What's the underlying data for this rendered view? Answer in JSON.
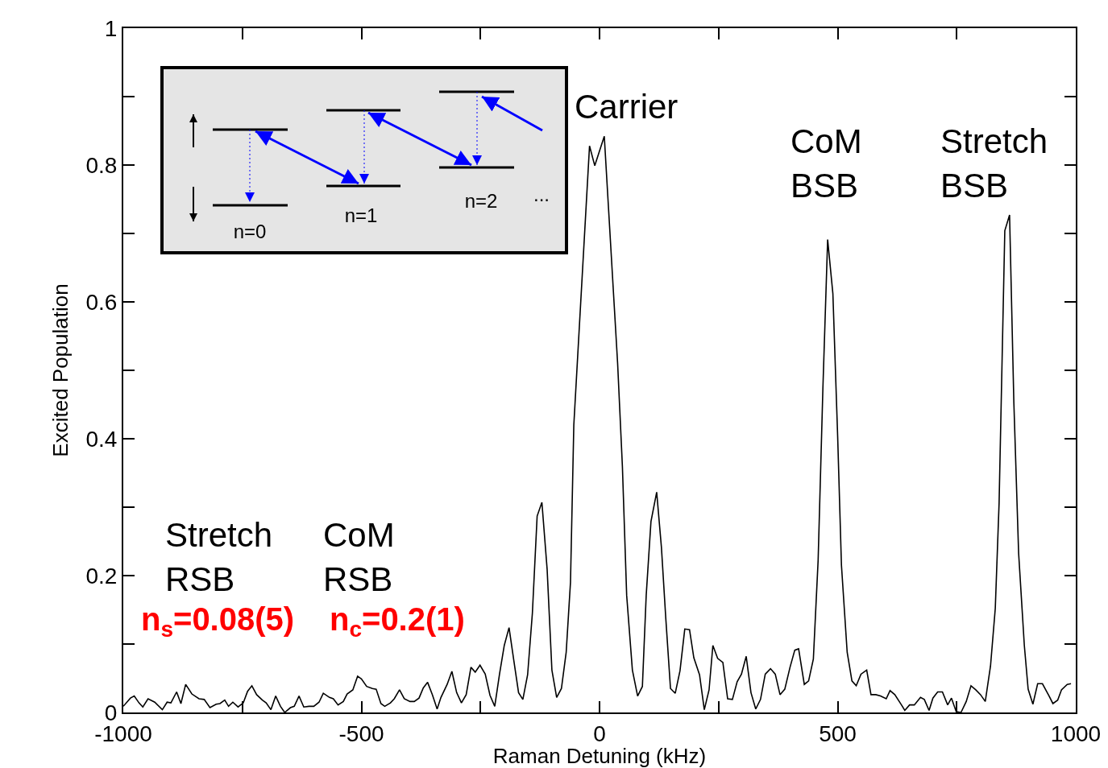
{
  "chart_data": {
    "type": "line",
    "xlabel": "Raman Detuning (kHz)",
    "ylabel": "Excited Population",
    "annotations": [
      "Carrier",
      "CoM\nBSB",
      "Stretch\nBSB",
      "Stretch\nRSB",
      "CoM\nRSB",
      "n$_{s}$=0.08(5)",
      "n$_{c}$=0.2(1)",
      "n=0",
      "n=1",
      "n=2",
      "..."
    ],
    "xlim": [
      -1000,
      1000
    ],
    "ylim": [
      0,
      1
    ],
    "xticks": [
      -1000,
      {
        "value": -750,
        "label": null
      },
      -500,
      {
        "value": -250,
        "label": null
      },
      0,
      {
        "value": 250,
        "label": null
      },
      500,
      {
        "value": 750,
        "label": null
      },
      1000
    ],
    "yticks": [
      0,
      {
        "value": 0.1,
        "label": null
      },
      0.2,
      {
        "value": 0.3,
        "label": null
      },
      0.4,
      {
        "value": 0.5,
        "label": null
      },
      0.6,
      {
        "value": 0.7,
        "label": null
      },
      0.8,
      {
        "value": 0.9,
        "label": null
      },
      1
    ],
    "x": [
      -1000,
      -985,
      -977,
      -967,
      -959,
      -948,
      -934,
      -918,
      -908,
      -900,
      -888,
      -879,
      -869,
      -856,
      -841,
      -830,
      -818,
      -805,
      -797,
      -787,
      -779,
      -770,
      -759,
      -748,
      -739,
      -730,
      -720,
      -708,
      -700,
      -690,
      -680,
      -670,
      -661,
      -649,
      -641,
      -631,
      -621,
      -610,
      -600,
      -589,
      -580,
      -567,
      -559,
      -549,
      -538,
      -530,
      -518,
      -508,
      -500,
      -489,
      -477,
      -469,
      -459,
      -451,
      -439,
      -431,
      -420,
      -410,
      -398,
      -389,
      -379,
      -370,
      -361,
      -351,
      -341,
      -333,
      -320,
      -310,
      -300,
      -290,
      -280,
      -270,
      -261,
      -251,
      -240,
      -230,
      -220,
      -210,
      -200,
      -190,
      -180,
      -170,
      -161,
      -151,
      -141,
      -131,
      -121,
      -110,
      -100,
      -90,
      -80,
      -70,
      -61,
      -54,
      -21,
      -10,
      10,
      38,
      48,
      57,
      69,
      80,
      90,
      98,
      108,
      120,
      130,
      139,
      149,
      159,
      169,
      179,
      189,
      198,
      210,
      220,
      230,
      238,
      248,
      259,
      269,
      279,
      289,
      298,
      308,
      318,
      328,
      338,
      348,
      359,
      369,
      379,
      389,
      400,
      410,
      418,
      430,
      439,
      449,
      459,
      469,
      479,
      490,
      500,
      508,
      520,
      530,
      539,
      549,
      561,
      570,
      580,
      590,
      602,
      610,
      620,
      634,
      641,
      651,
      661,
      674,
      682,
      692,
      700,
      710,
      720,
      731,
      739,
      749,
      759,
      770,
      780,
      790,
      800,
      810,
      821,
      831,
      839,
      851,
      861,
      870,
      880,
      892,
      900,
      910,
      920,
      930,
      944,
      952,
      962,
      970,
      982,
      990
    ],
    "series": [
      {
        "color": "#000000",
        "values": [
          0.009,
          0.021,
          0.024,
          0.014,
          0.008,
          0.02,
          0.015,
          0.004,
          0.015,
          0.014,
          0.03,
          0.013,
          0.041,
          0.027,
          0.02,
          0.019,
          0.007,
          0.012,
          0.013,
          0.018,
          0.009,
          0.015,
          0.008,
          0.014,
          0.031,
          0.039,
          0.026,
          0.018,
          0.014,
          0.004,
          0.024,
          0.009,
          0,
          0.007,
          0.009,
          0.024,
          0.008,
          0.009,
          0.009,
          0.015,
          0.028,
          0.022,
          0.02,
          0.011,
          0.016,
          0.027,
          0.033,
          0.053,
          0.049,
          0.038,
          0.035,
          0.034,
          0.013,
          0.009,
          0.014,
          0.02,
          0.033,
          0.02,
          0.016,
          0.016,
          0.021,
          0.036,
          0.044,
          0.026,
          0.005,
          0.022,
          0.041,
          0.06,
          0.029,
          0.014,
          0.026,
          0.066,
          0.059,
          0.069,
          0.056,
          0.025,
          0.009,
          0.056,
          0.098,
          0.124,
          0.076,
          0.029,
          0.019,
          0.055,
          0.145,
          0.287,
          0.307,
          0.209,
          0.062,
          0.022,
          0.035,
          0.088,
          0.19,
          0.42,
          0.828,
          0.799,
          0.842,
          0.51,
          0.36,
          0.171,
          0.062,
          0.024,
          0.038,
          0.171,
          0.279,
          0.322,
          0.241,
          0.139,
          0.035,
          0.028,
          0.061,
          0.122,
          0.121,
          0.08,
          0.055,
          0.004,
          0.033,
          0.098,
          0.079,
          0.073,
          0.02,
          0.019,
          0.045,
          0.056,
          0.082,
          0.029,
          0.005,
          0.019,
          0.056,
          0.064,
          0.056,
          0.026,
          0.034,
          0.066,
          0.091,
          0.093,
          0.041,
          0.046,
          0.078,
          0.222,
          0.473,
          0.691,
          0.612,
          0.404,
          0.215,
          0.088,
          0.046,
          0.039,
          0.056,
          0.062,
          0.026,
          0.026,
          0.024,
          0.02,
          0.032,
          0.026,
          0.011,
          0.003,
          0.011,
          0.011,
          0.022,
          0.019,
          0.003,
          0.021,
          0.03,
          0.03,
          0.011,
          0.021,
          0.001,
          0,
          0.016,
          0.039,
          0.033,
          0.026,
          0.016,
          0.068,
          0.152,
          0.306,
          0.704,
          0.727,
          0.453,
          0.233,
          0.098,
          0.034,
          0.012,
          0.042,
          0.042,
          0.024,
          0.013,
          0.018,
          0.033,
          0.041,
          0.042
        ]
      }
    ]
  }
}
